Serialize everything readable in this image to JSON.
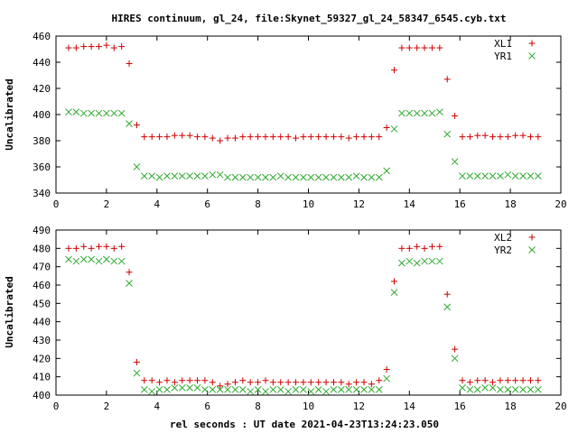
{
  "title": "HIRES continuum, gl_24, file:Skynet_59327_gl_24_58347_6545.cyb.txt",
  "xlabel": "rel seconds : UT date 2021-04-23T13:24:23.050",
  "colors": {
    "series1": "#cc0000",
    "series2": "#33aa33"
  },
  "chart_data": [
    {
      "type": "scatter",
      "title": "HIRES continuum, gl_24, file:Skynet_59327_gl_24_58347_6545.cyb.txt",
      "xlabel": "",
      "ylabel": "Uncalibrated",
      "xlim": [
        0,
        20
      ],
      "ylim": [
        340,
        460
      ],
      "xticks": [
        0,
        2,
        4,
        6,
        8,
        10,
        12,
        14,
        16,
        18,
        20
      ],
      "yticks": [
        340,
        360,
        380,
        400,
        420,
        440,
        460
      ],
      "legend": "top-right",
      "x": [
        0.5,
        0.8,
        1.1,
        1.4,
        1.7,
        2.0,
        2.3,
        2.6,
        2.9,
        3.2,
        3.5,
        3.8,
        4.1,
        4.4,
        4.7,
        5.0,
        5.3,
        5.6,
        5.9,
        6.2,
        6.5,
        6.8,
        7.1,
        7.4,
        7.7,
        8.0,
        8.3,
        8.6,
        8.9,
        9.2,
        9.5,
        9.8,
        10.1,
        10.4,
        10.7,
        11.0,
        11.3,
        11.6,
        11.9,
        12.2,
        12.5,
        12.8,
        13.1,
        13.4,
        13.7,
        14.0,
        14.3,
        14.6,
        14.9,
        15.2,
        15.5,
        15.8,
        16.1,
        16.4,
        16.7,
        17.0,
        17.3,
        17.6,
        17.9,
        18.2,
        18.5,
        18.8,
        19.1
      ],
      "series": [
        {
          "name": "XL1",
          "marker": "+",
          "color": "#cc0000",
          "values": [
            451,
            451,
            452,
            452,
            452,
            453,
            451,
            452,
            439,
            392,
            383,
            383,
            383,
            383,
            384,
            384,
            384,
            383,
            383,
            382,
            380,
            382,
            382,
            383,
            383,
            383,
            383,
            383,
            383,
            383,
            382,
            383,
            383,
            383,
            383,
            383,
            383,
            382,
            383,
            383,
            383,
            383,
            390,
            434,
            451,
            451,
            451,
            451,
            451,
            451,
            427,
            399,
            383,
            383,
            384,
            384,
            383,
            383,
            383,
            384,
            384,
            383,
            383
          ]
        },
        {
          "name": "YR1",
          "marker": "x",
          "color": "#33aa33",
          "values": [
            402,
            402,
            401,
            401,
            401,
            401,
            401,
            401,
            393,
            360,
            353,
            353,
            352,
            353,
            353,
            353,
            353,
            353,
            353,
            354,
            354,
            352,
            352,
            352,
            352,
            352,
            352,
            352,
            353,
            352,
            352,
            352,
            352,
            352,
            352,
            352,
            352,
            352,
            353,
            352,
            352,
            352,
            357,
            389,
            401,
            401,
            401,
            401,
            401,
            402,
            385,
            364,
            353,
            353,
            353,
            353,
            353,
            353,
            354,
            353,
            353,
            353,
            353
          ]
        }
      ]
    },
    {
      "type": "scatter",
      "title": "",
      "xlabel": "rel seconds : UT date 2021-04-23T13:24:23.050",
      "ylabel": "Uncalibrated",
      "xlim": [
        0,
        20
      ],
      "ylim": [
        400,
        490
      ],
      "xticks": [
        0,
        2,
        4,
        6,
        8,
        10,
        12,
        14,
        16,
        18,
        20
      ],
      "yticks": [
        400,
        410,
        420,
        430,
        440,
        450,
        460,
        470,
        480,
        490
      ],
      "legend": "top-right",
      "x": [
        0.5,
        0.8,
        1.1,
        1.4,
        1.7,
        2.0,
        2.3,
        2.6,
        2.9,
        3.2,
        3.5,
        3.8,
        4.1,
        4.4,
        4.7,
        5.0,
        5.3,
        5.6,
        5.9,
        6.2,
        6.5,
        6.8,
        7.1,
        7.4,
        7.7,
        8.0,
        8.3,
        8.6,
        8.9,
        9.2,
        9.5,
        9.8,
        10.1,
        10.4,
        10.7,
        11.0,
        11.3,
        11.6,
        11.9,
        12.2,
        12.5,
        12.8,
        13.1,
        13.4,
        13.7,
        14.0,
        14.3,
        14.6,
        14.9,
        15.2,
        15.5,
        15.8,
        16.1,
        16.4,
        16.7,
        17.0,
        17.3,
        17.6,
        17.9,
        18.2,
        18.5,
        18.8,
        19.1
      ],
      "series": [
        {
          "name": "XL2",
          "marker": "+",
          "color": "#cc0000",
          "values": [
            480,
            480,
            481,
            480,
            481,
            481,
            480,
            481,
            467,
            418,
            408,
            408,
            407,
            408,
            407,
            408,
            408,
            408,
            408,
            407,
            405,
            406,
            407,
            408,
            407,
            407,
            408,
            407,
            407,
            407,
            407,
            407,
            407,
            407,
            407,
            407,
            407,
            406,
            407,
            407,
            406,
            408,
            414,
            462,
            480,
            480,
            481,
            480,
            481,
            481,
            455,
            425,
            408,
            407,
            408,
            408,
            407,
            408,
            408,
            408,
            408,
            408,
            408
          ]
        },
        {
          "name": "YR2",
          "marker": "x",
          "color": "#33aa33",
          "values": [
            474,
            473,
            474,
            474,
            473,
            474,
            473,
            473,
            461,
            412,
            403,
            402,
            403,
            403,
            404,
            404,
            404,
            404,
            403,
            403,
            403,
            403,
            403,
            403,
            402,
            403,
            402,
            403,
            403,
            402,
            403,
            403,
            402,
            403,
            402,
            403,
            403,
            403,
            403,
            403,
            403,
            403,
            409,
            456,
            472,
            473,
            472,
            473,
            473,
            473,
            448,
            420,
            404,
            403,
            403,
            404,
            404,
            403,
            403,
            403,
            403,
            403,
            403
          ]
        }
      ]
    }
  ]
}
